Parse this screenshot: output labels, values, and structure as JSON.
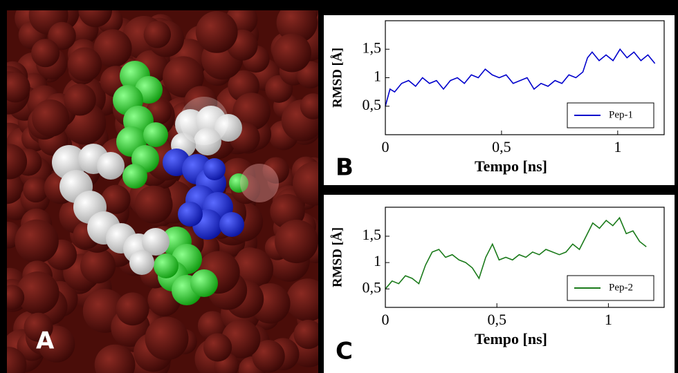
{
  "image_label": "A",
  "chart_data": [
    {
      "type": "line",
      "panel_label": "B",
      "xlabel": "Tempo [ns]",
      "ylabel": "RMSD [Å]",
      "x": [
        0,
        0.02,
        0.04,
        0.07,
        0.1,
        0.13,
        0.16,
        0.19,
        0.22,
        0.25,
        0.28,
        0.31,
        0.34,
        0.37,
        0.4,
        0.43,
        0.46,
        0.49,
        0.52,
        0.55,
        0.58,
        0.61,
        0.64,
        0.67,
        0.7,
        0.73,
        0.76,
        0.79,
        0.82,
        0.85,
        0.87,
        0.89,
        0.92,
        0.95,
        0.98,
        1.01,
        1.04,
        1.07,
        1.1,
        1.13,
        1.16
      ],
      "series": [
        {
          "name": "Pep-1",
          "color": "#0000cc",
          "values": [
            0.5,
            0.8,
            0.75,
            0.9,
            0.95,
            0.85,
            1.0,
            0.9,
            0.95,
            0.8,
            0.95,
            1.0,
            0.9,
            1.05,
            1.0,
            1.15,
            1.05,
            1.0,
            1.05,
            0.9,
            0.95,
            1.0,
            0.8,
            0.9,
            0.85,
            0.95,
            0.9,
            1.05,
            1.0,
            1.1,
            1.35,
            1.45,
            1.3,
            1.4,
            1.3,
            1.5,
            1.35,
            1.45,
            1.3,
            1.4,
            1.25
          ]
        }
      ],
      "xlim": [
        0,
        1.2
      ],
      "ylim": [
        0,
        2
      ],
      "xticks": [
        0,
        {
          "value": 0.5,
          "label": "0,5"
        },
        1
      ],
      "yticks": [
        {
          "value": 0.5,
          "label": "0,5"
        },
        1,
        {
          "value": 1.5,
          "label": "1,5"
        }
      ],
      "legend": "lower right"
    },
    {
      "type": "line",
      "panel_label": "C",
      "xlabel": "Tempo [ns]",
      "ylabel": "RMSD [Å]",
      "x": [
        0,
        0.03,
        0.06,
        0.09,
        0.12,
        0.15,
        0.18,
        0.21,
        0.24,
        0.27,
        0.3,
        0.33,
        0.36,
        0.39,
        0.42,
        0.45,
        0.48,
        0.51,
        0.54,
        0.57,
        0.6,
        0.63,
        0.66,
        0.69,
        0.72,
        0.75,
        0.78,
        0.81,
        0.84,
        0.87,
        0.9,
        0.93,
        0.96,
        0.99,
        1.02,
        1.05,
        1.08,
        1.11,
        1.14,
        1.17
      ],
      "series": [
        {
          "name": "Pep-2",
          "color": "#1a7a1a",
          "values": [
            0.5,
            0.65,
            0.6,
            0.75,
            0.7,
            0.6,
            0.95,
            1.2,
            1.25,
            1.1,
            1.15,
            1.05,
            1.0,
            0.9,
            0.7,
            1.1,
            1.35,
            1.05,
            1.1,
            1.05,
            1.15,
            1.1,
            1.2,
            1.15,
            1.25,
            1.2,
            1.15,
            1.2,
            1.35,
            1.25,
            1.5,
            1.75,
            1.65,
            1.8,
            1.7,
            1.85,
            1.55,
            1.6,
            1.4,
            1.3
          ]
        }
      ],
      "xlim": [
        0,
        1.25
      ],
      "ylim": [
        0.15,
        2.05
      ],
      "xticks": [
        0,
        {
          "value": 0.5,
          "label": "0,5"
        },
        1
      ],
      "yticks": [
        {
          "value": 0.5,
          "label": "0,5"
        },
        1,
        {
          "value": 1.5,
          "label": "1,5"
        }
      ],
      "legend": "lower right"
    }
  ]
}
